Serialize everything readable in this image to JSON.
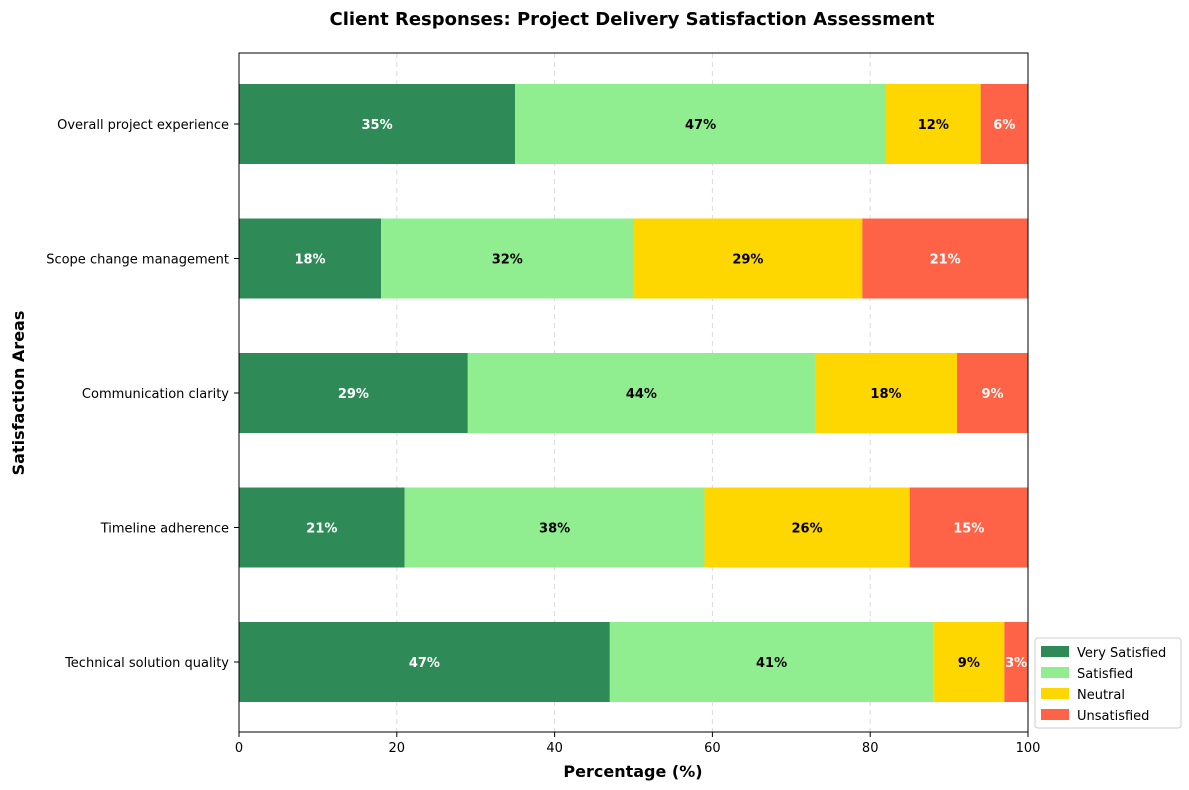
{
  "chart_data": {
    "type": "bar",
    "orientation": "horizontal",
    "stacked": true,
    "title": "Client Responses: Project Delivery Satisfaction Assessment",
    "xlabel": "Percentage (%)",
    "ylabel": "Satisfaction Areas",
    "xlim": [
      0,
      100
    ],
    "xticks": [
      0,
      20,
      40,
      60,
      80,
      100
    ],
    "grid": "vertical dashed",
    "legend_position": "lower-right",
    "categories": [
      "Overall project experience",
      "Scope change management",
      "Communication clarity",
      "Timeline adherence",
      "Technical solution quality"
    ],
    "series": [
      {
        "name": "Very Satisfied",
        "color": "#2e8b57",
        "label_color": "#ffffff",
        "values": [
          35,
          18,
          29,
          21,
          47
        ]
      },
      {
        "name": "Satisfied",
        "color": "#90ee90",
        "label_color": "#000000",
        "values": [
          47,
          32,
          44,
          38,
          41
        ]
      },
      {
        "name": "Neutral",
        "color": "#ffd700",
        "label_color": "#000000",
        "values": [
          12,
          29,
          18,
          26,
          9
        ]
      },
      {
        "name": "Unsatisfied",
        "color": "#ff6347",
        "label_color": "#ffffff",
        "values": [
          6,
          21,
          9,
          15,
          3
        ]
      }
    ]
  }
}
